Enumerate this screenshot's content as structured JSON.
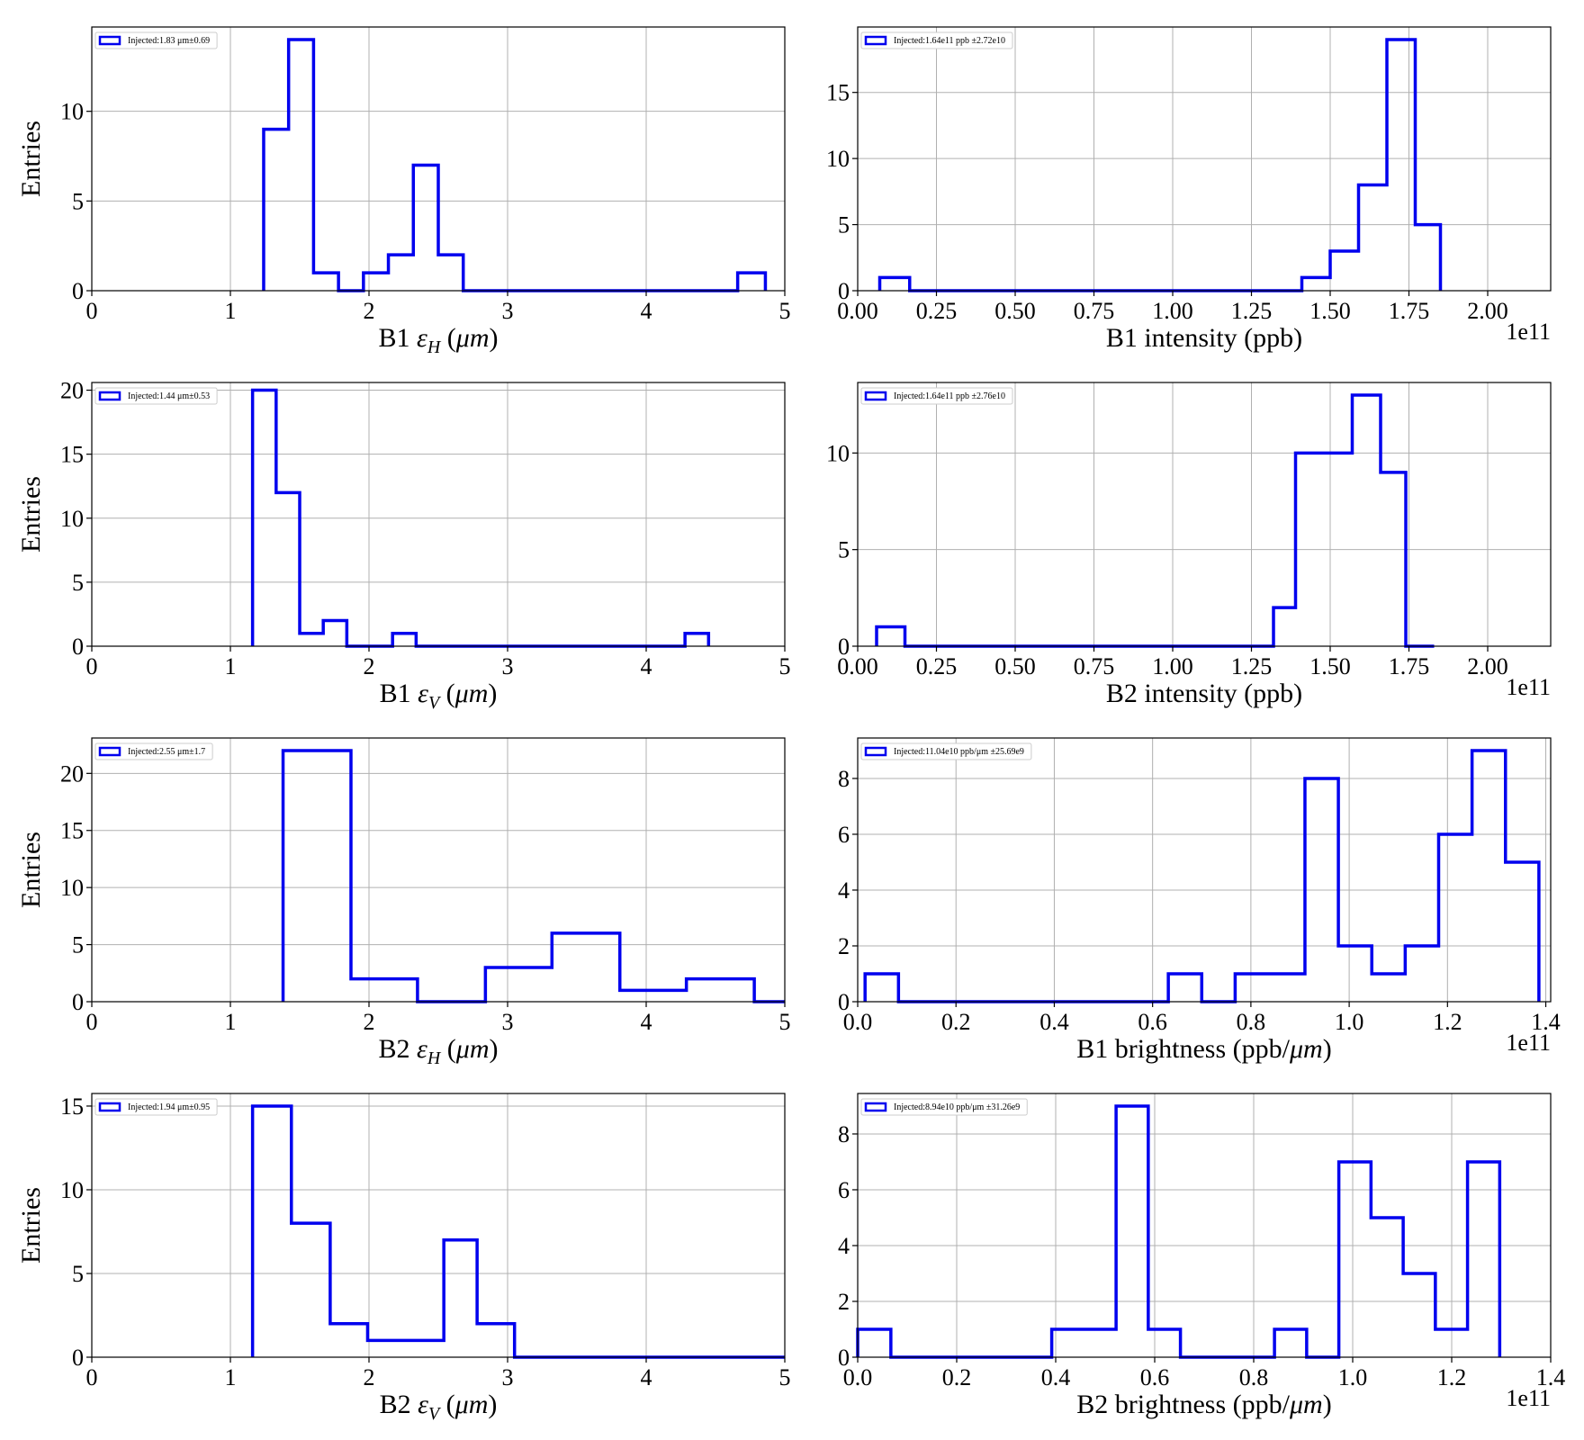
{
  "colors": {
    "series": "#0000ee",
    "grid": "#b0b0b0",
    "axis": "#000000"
  },
  "chart_data": [
    {
      "type": "histogram",
      "xlabel": "B1 εH (μm)",
      "xlabel_main": "B1 ",
      "xlabel_sym": "ε",
      "xlabel_sub": "H",
      "xlabel_unit": " (μm)",
      "ylabel": "Entries",
      "xlim": [
        0,
        5
      ],
      "ylim": [
        0,
        14.7
      ],
      "xticks": [
        0,
        1,
        2,
        3,
        4,
        5
      ],
      "xtick_labels": [
        "0",
        "1",
        "2",
        "3",
        "4",
        "5"
      ],
      "yticks": [
        0,
        5,
        10
      ],
      "ytick_labels": [
        "0",
        "5",
        "10"
      ],
      "offset_text": "",
      "legend": "Injected:1.83 μm±0.69",
      "legend_location": "upper-left",
      "grid": true,
      "bin_edges": [
        1.24,
        1.42,
        1.6,
        1.78,
        1.96,
        2.14,
        2.32,
        2.5,
        2.68,
        2.86,
        3.04,
        3.22,
        3.4,
        3.58,
        3.76,
        3.94,
        4.12,
        4.3,
        4.48,
        4.66,
        4.86
      ],
      "counts": [
        9,
        14,
        1,
        0,
        1,
        2,
        7,
        2,
        0,
        0,
        0,
        0,
        0,
        0,
        0,
        0,
        0,
        0,
        0,
        1
      ]
    },
    {
      "type": "histogram",
      "xlabel": "B1 intensity (ppb)",
      "xlabel_main": "B1 intensity (ppb)",
      "xlabel_sym": "",
      "xlabel_sub": "",
      "xlabel_unit": "",
      "ylabel": "",
      "xlim": [
        0,
        2.2
      ],
      "ylim": [
        0,
        19.95
      ],
      "xticks": [
        0,
        0.25,
        0.5,
        0.75,
        1.0,
        1.25,
        1.5,
        1.75,
        2.0
      ],
      "xtick_labels": [
        "0.00",
        "0.25",
        "0.50",
        "0.75",
        "1.00",
        "1.25",
        "1.50",
        "1.75",
        "2.00"
      ],
      "yticks": [
        0,
        5,
        10,
        15
      ],
      "ytick_labels": [
        "0",
        "5",
        "10",
        "15"
      ],
      "offset_text": "1e11",
      "legend": "Injected:1.64e11 ppb ±2.72e10",
      "legend_location": "upper-left",
      "grid": true,
      "bin_edges": [
        0.07,
        0.165,
        0.26,
        0.355,
        0.45,
        0.545,
        0.64,
        0.735,
        0.83,
        0.925,
        1.02,
        1.115,
        1.21,
        1.305,
        1.41,
        1.5,
        1.59,
        1.68,
        1.77,
        1.85
      ],
      "counts": [
        1,
        0,
        0,
        0,
        0,
        0,
        0,
        0,
        0,
        0,
        0,
        0,
        0,
        0,
        1,
        3,
        8,
        19,
        5
      ]
    },
    {
      "type": "histogram",
      "xlabel": "B1 εV (μm)",
      "xlabel_main": "B1 ",
      "xlabel_sym": "ε",
      "xlabel_sub": "V",
      "xlabel_unit": " (μm)",
      "ylabel": "Entries",
      "xlim": [
        0,
        5
      ],
      "ylim": [
        0,
        20.6
      ],
      "xticks": [
        0,
        1,
        2,
        3,
        4,
        5
      ],
      "xtick_labels": [
        "0",
        "1",
        "2",
        "3",
        "4",
        "5"
      ],
      "yticks": [
        0,
        5,
        10,
        15,
        20
      ],
      "ytick_labels": [
        "0",
        "5",
        "10",
        "15",
        "20"
      ],
      "offset_text": "",
      "legend": "Injected:1.44 μm±0.53",
      "legend_location": "upper-left",
      "grid": true,
      "bin_edges": [
        1.16,
        1.33,
        1.5,
        1.67,
        1.84,
        2.0,
        2.17,
        2.34,
        2.51,
        2.68,
        2.84,
        3.01,
        3.18,
        3.35,
        3.52,
        3.68,
        3.85,
        4.02,
        4.28,
        4.45
      ],
      "counts": [
        20,
        12,
        1,
        2,
        0,
        0,
        1,
        0,
        0,
        0,
        0,
        0,
        0,
        0,
        0,
        0,
        0,
        0,
        1
      ]
    },
    {
      "type": "histogram",
      "xlabel": "B2 intensity (ppb)",
      "xlabel_main": "B2 intensity (ppb)",
      "xlabel_sym": "",
      "xlabel_sub": "",
      "xlabel_unit": "",
      "ylabel": "",
      "xlim": [
        0,
        2.2
      ],
      "ylim": [
        0,
        13.65
      ],
      "xticks": [
        0,
        0.25,
        0.5,
        0.75,
        1.0,
        1.25,
        1.5,
        1.75,
        2.0
      ],
      "xtick_labels": [
        "0.00",
        "0.25",
        "0.50",
        "0.75",
        "1.00",
        "1.25",
        "1.50",
        "1.75",
        "2.00"
      ],
      "yticks": [
        0,
        5,
        10
      ],
      "ytick_labels": [
        "0",
        "5",
        "10"
      ],
      "offset_text": "1e11",
      "legend": "Injected:1.64e11 ppb ±2.76e10",
      "legend_location": "upper-left",
      "grid": true,
      "bin_edges": [
        0.06,
        0.15,
        0.24,
        0.33,
        0.42,
        0.51,
        0.6,
        0.69,
        0.78,
        0.87,
        0.96,
        1.05,
        1.14,
        1.23,
        1.32,
        1.39,
        1.57,
        1.66,
        1.74,
        1.83
      ],
      "counts": [
        1,
        0,
        0,
        0,
        0,
        0,
        0,
        0,
        0,
        0,
        0,
        0,
        0,
        0,
        2,
        10,
        13,
        9,
        0
      ]
    },
    {
      "type": "histogram",
      "xlabel": "B2 εH (μm)",
      "xlabel_main": "B2 ",
      "xlabel_sym": "ε",
      "xlabel_sub": "H",
      "xlabel_unit": " (μm)",
      "ylabel": "Entries",
      "xlim": [
        0,
        5
      ],
      "ylim": [
        0,
        23.1
      ],
      "xticks": [
        0,
        1,
        2,
        3,
        4,
        5
      ],
      "xtick_labels": [
        "0",
        "1",
        "2",
        "3",
        "4",
        "5"
      ],
      "yticks": [
        0,
        5,
        10,
        15,
        20
      ],
      "ytick_labels": [
        "0",
        "5",
        "10",
        "15",
        "20"
      ],
      "offset_text": "",
      "legend": "Injected:2.55 μm±1.7",
      "legend_location": "upper-left",
      "grid": true,
      "bin_edges": [
        1.38,
        1.87,
        2.35,
        2.84,
        3.32,
        3.81,
        4.29,
        4.78,
        5.0
      ],
      "counts": [
        22,
        2,
        0,
        3,
        6,
        1,
        2,
        0
      ]
    },
    {
      "type": "histogram",
      "xlabel": "B1 brightness (ppb/μm)",
      "xlabel_main": "B1 brightness (ppb/",
      "xlabel_sym": "μm",
      "xlabel_sub": "",
      "xlabel_unit": ")",
      "ylabel": "",
      "xlim": [
        0,
        1.41
      ],
      "ylim": [
        0,
        9.45
      ],
      "xticks": [
        0,
        0.2,
        0.4,
        0.6,
        0.8,
        1.0,
        1.2,
        1.4
      ],
      "xtick_labels": [
        "0.0",
        "0.2",
        "0.4",
        "0.6",
        "0.8",
        "1.0",
        "1.2",
        "1.4"
      ],
      "yticks": [
        0,
        2,
        4,
        6,
        8
      ],
      "ytick_labels": [
        "0",
        "2",
        "4",
        "6",
        "8"
      ],
      "offset_text": "1e11",
      "legend": "Injected:11.04e10 ppb/μm ±25.69e9",
      "legend_location": "upper-left",
      "grid": true,
      "bin_edges": [
        0.015,
        0.083,
        0.151,
        0.219,
        0.287,
        0.355,
        0.423,
        0.491,
        0.559,
        0.632,
        0.7,
        0.768,
        0.91,
        0.978,
        1.046,
        1.114,
        1.182,
        1.25,
        1.318,
        1.386
      ],
      "counts": [
        1,
        0,
        0,
        0,
        0,
        0,
        0,
        0,
        0,
        1,
        0,
        1,
        8,
        2,
        1,
        2,
        6,
        9,
        5
      ]
    },
    {
      "type": "histogram",
      "xlabel": "B2 εV (μm)",
      "xlabel_main": "B2 ",
      "xlabel_sym": "ε",
      "xlabel_sub": "V",
      "xlabel_unit": " (μm)",
      "ylabel": "Entries",
      "xlim": [
        0,
        5
      ],
      "ylim": [
        0,
        15.75
      ],
      "xticks": [
        0,
        1,
        2,
        3,
        4,
        5
      ],
      "xtick_labels": [
        "0",
        "1",
        "2",
        "3",
        "4",
        "5"
      ],
      "yticks": [
        0,
        5,
        10,
        15
      ],
      "ytick_labels": [
        "0",
        "5",
        "10",
        "15"
      ],
      "offset_text": "",
      "legend": "Injected:1.94 μm±0.95",
      "legend_location": "upper-left",
      "grid": true,
      "bin_edges": [
        1.16,
        1.44,
        1.72,
        1.99,
        2.27,
        2.54,
        2.78,
        3.05,
        3.33,
        3.61,
        3.89,
        4.17,
        4.45,
        4.72,
        5.0
      ],
      "counts": [
        15,
        8,
        2,
        1,
        1,
        7,
        2,
        0,
        0,
        0,
        0,
        0,
        0,
        0
      ]
    },
    {
      "type": "histogram",
      "xlabel": "B2 brightness (ppb/μm)",
      "xlabel_main": "B2 brightness (ppb/",
      "xlabel_sym": "μm",
      "xlabel_sub": "",
      "xlabel_unit": ")",
      "ylabel": "",
      "xlim": [
        0,
        1.4
      ],
      "ylim": [
        0,
        9.45
      ],
      "xticks": [
        0,
        0.2,
        0.4,
        0.6,
        0.8,
        1.0,
        1.2,
        1.4
      ],
      "xtick_labels": [
        "0.0",
        "0.2",
        "0.4",
        "0.6",
        "0.8",
        "1.0",
        "1.2",
        "1.4"
      ],
      "yticks": [
        0,
        2,
        4,
        6,
        8
      ],
      "ytick_labels": [
        "0",
        "2",
        "4",
        "6",
        "8"
      ],
      "offset_text": "1e11",
      "legend": "Injected:8.94e10 ppb/μm ±31.26e9",
      "legend_location": "upper-left",
      "grid": true,
      "bin_edges": [
        0.0,
        0.067,
        0.134,
        0.2,
        0.267,
        0.334,
        0.392,
        0.522,
        0.587,
        0.652,
        0.717,
        0.782,
        0.842,
        0.907,
        0.972,
        1.037,
        1.102,
        1.167,
        1.232,
        1.297
      ],
      "counts": [
        1,
        0,
        0,
        0,
        0,
        0,
        1,
        9,
        1,
        0,
        0,
        0,
        1,
        0,
        7,
        5,
        3,
        1,
        7
      ]
    }
  ]
}
